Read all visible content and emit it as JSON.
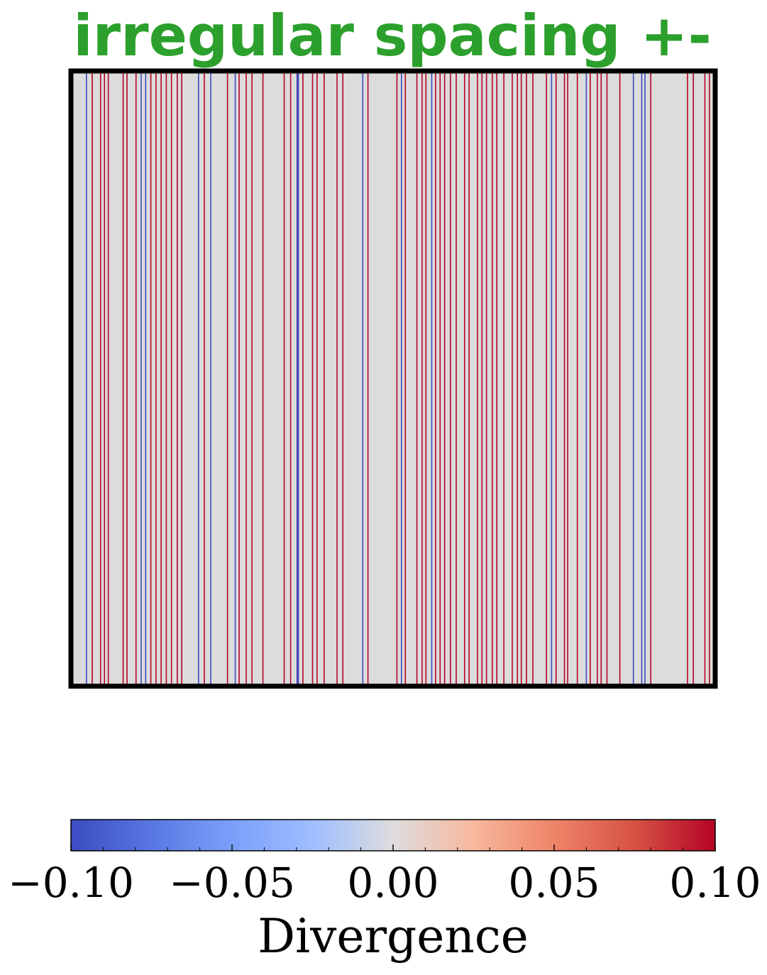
{
  "chart_data": {
    "type": "heatmap",
    "title": "irregular spacing +-",
    "title_color": "#2ca02c",
    "description_note": "",
    "field_background_color": "#dcdcdc",
    "x_extent": [
      0,
      1
    ],
    "colorbar": {
      "label": "Divergence",
      "colormap": "coolwarm",
      "range": [
        -0.1,
        0.1
      ],
      "ticks": [
        -0.1,
        -0.05,
        0.0,
        0.05,
        0.1
      ],
      "tick_labels": [
        "−0.10",
        "−0.05",
        "0.00",
        "0.05",
        "0.10"
      ],
      "minor_ticks": [
        -0.09,
        -0.08,
        -0.07,
        -0.06,
        -0.04,
        -0.03,
        -0.02,
        -0.01,
        0.01,
        0.02,
        0.03,
        0.04,
        0.06,
        0.07,
        0.08,
        0.09
      ]
    },
    "lines": [
      {
        "x": 0.024,
        "value": -0.1
      },
      {
        "x": 0.033,
        "value": 0.1
      },
      {
        "x": 0.046,
        "value": 0.1
      },
      {
        "x": 0.052,
        "value": 0.1
      },
      {
        "x": 0.058,
        "value": 0.1
      },
      {
        "x": 0.081,
        "value": 0.1
      },
      {
        "x": 0.087,
        "value": 0.1
      },
      {
        "x": 0.101,
        "value": 0.1
      },
      {
        "x": 0.109,
        "value": -0.1
      },
      {
        "x": 0.116,
        "value": -0.1
      },
      {
        "x": 0.124,
        "value": 0.1
      },
      {
        "x": 0.132,
        "value": 0.1
      },
      {
        "x": 0.14,
        "value": 0.1
      },
      {
        "x": 0.148,
        "value": 0.1
      },
      {
        "x": 0.156,
        "value": 0.1
      },
      {
        "x": 0.165,
        "value": 0.1
      },
      {
        "x": 0.172,
        "value": 0.1
      },
      {
        "x": 0.198,
        "value": -0.1
      },
      {
        "x": 0.207,
        "value": 0.1
      },
      {
        "x": 0.217,
        "value": -0.1
      },
      {
        "x": 0.243,
        "value": 0.1
      },
      {
        "x": 0.255,
        "value": -0.1
      },
      {
        "x": 0.261,
        "value": 0.1
      },
      {
        "x": 0.272,
        "value": 0.1
      },
      {
        "x": 0.281,
        "value": 0.1
      },
      {
        "x": 0.298,
        "value": 0.1
      },
      {
        "x": 0.331,
        "value": 0.1
      },
      {
        "x": 0.341,
        "value": 0.1
      },
      {
        "x": 0.352,
        "value": 0.1
      },
      {
        "x": 0.36,
        "value": 0.1
      },
      {
        "x": 0.351,
        "value": -0.1
      },
      {
        "x": 0.353,
        "value": -0.1
      },
      {
        "x": 0.375,
        "value": 0.1
      },
      {
        "x": 0.382,
        "value": 0.1
      },
      {
        "x": 0.393,
        "value": 0.1
      },
      {
        "x": 0.413,
        "value": 0.1
      },
      {
        "x": 0.422,
        "value": 0.1
      },
      {
        "x": 0.453,
        "value": -0.1
      },
      {
        "x": 0.461,
        "value": 0.1
      },
      {
        "x": 0.506,
        "value": 0.1
      },
      {
        "x": 0.513,
        "value": -0.1
      },
      {
        "x": 0.519,
        "value": 0.1
      },
      {
        "x": 0.537,
        "value": 0.1
      },
      {
        "x": 0.545,
        "value": 0.1
      },
      {
        "x": 0.551,
        "value": 0.1
      },
      {
        "x": 0.56,
        "value": -0.1
      },
      {
        "x": 0.566,
        "value": 0.1
      },
      {
        "x": 0.573,
        "value": 0.1
      },
      {
        "x": 0.58,
        "value": 0.1
      },
      {
        "x": 0.589,
        "value": 0.1
      },
      {
        "x": 0.598,
        "value": 0.1
      },
      {
        "x": 0.611,
        "value": 0.1
      },
      {
        "x": 0.618,
        "value": 0.1
      },
      {
        "x": 0.631,
        "value": 0.1
      },
      {
        "x": 0.638,
        "value": 0.1
      },
      {
        "x": 0.645,
        "value": 0.1
      },
      {
        "x": 0.654,
        "value": 0.1
      },
      {
        "x": 0.661,
        "value": 0.1
      },
      {
        "x": 0.672,
        "value": 0.1
      },
      {
        "x": 0.685,
        "value": 0.1
      },
      {
        "x": 0.693,
        "value": 0.1
      },
      {
        "x": 0.699,
        "value": 0.1
      },
      {
        "x": 0.707,
        "value": 0.1
      },
      {
        "x": 0.717,
        "value": 0.1
      },
      {
        "x": 0.738,
        "value": 0.1
      },
      {
        "x": 0.746,
        "value": -0.1
      },
      {
        "x": 0.753,
        "value": 0.1
      },
      {
        "x": 0.766,
        "value": 0.1
      },
      {
        "x": 0.771,
        "value": 0.1
      },
      {
        "x": 0.786,
        "value": 0.1
      },
      {
        "x": 0.8,
        "value": -0.1
      },
      {
        "x": 0.806,
        "value": 0.1
      },
      {
        "x": 0.817,
        "value": 0.1
      },
      {
        "x": 0.823,
        "value": 0.1
      },
      {
        "x": 0.832,
        "value": 0.1
      },
      {
        "x": 0.852,
        "value": 0.1
      },
      {
        "x": 0.873,
        "value": -0.1
      },
      {
        "x": 0.886,
        "value": -0.1
      },
      {
        "x": 0.891,
        "value": -0.1
      },
      {
        "x": 0.9,
        "value": 0.1
      },
      {
        "x": 0.957,
        "value": 0.1
      },
      {
        "x": 0.966,
        "value": 0.1
      },
      {
        "x": 0.984,
        "value": 0.1
      },
      {
        "x": 0.991,
        "value": 0.1
      }
    ]
  }
}
